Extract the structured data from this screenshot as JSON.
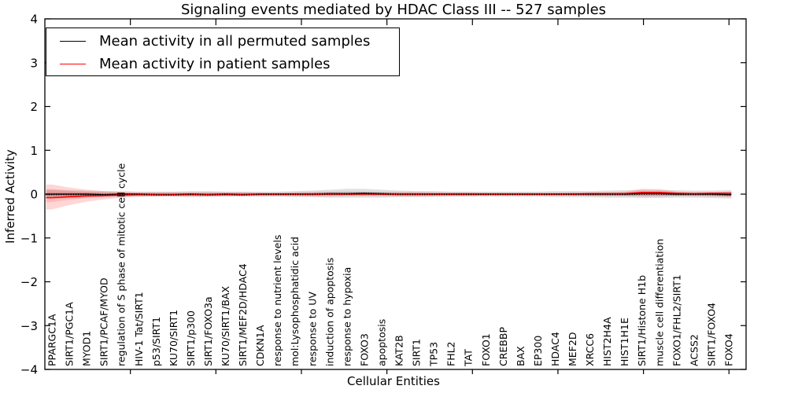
{
  "title": "Signaling events mediated by HDAC Class III -- 527 samples",
  "xlabel": "Cellular Entities",
  "ylabel": "Inferred Activity",
  "legend": {
    "items": [
      {
        "label": "Mean activity in all permuted samples",
        "color": "#000000"
      },
      {
        "label": "Mean activity in patient samples",
        "color": "#ff0000"
      }
    ]
  },
  "chart_data": {
    "type": "line",
    "title": "Signaling events mediated by HDAC Class III -- 527 samples",
    "xlabel": "Cellular Entities",
    "ylabel": "Inferred Activity",
    "ylim": [
      -4,
      4
    ],
    "yticks": [
      -4,
      -3,
      -2,
      -1,
      0,
      1,
      2,
      3,
      4
    ],
    "grid": false,
    "legend_position": "upper left",
    "categories": [
      "PPARGC1A",
      "SIRT1/PGC1A",
      "MYOD1",
      "SIRT1/PCAF/MYOD",
      "regulation of S phase of mitotic cell cycle",
      "HIV-1 Tat/SIRT1",
      "p53/SIRT1",
      "KU70/SIRT1",
      "SIRT1/p300",
      "SIRT1/FOXO3a",
      "KU70/SIRT1/BAX",
      "SIRT1/MEF2D/HDAC4",
      "CDKN1A",
      "response to nutrient levels",
      "mol:Lysophosphatidic acid",
      "response to UV",
      "induction of apoptosis",
      "response to hypoxia",
      "FOXO3",
      "apoptosis",
      "KAT2B",
      "SIRT1",
      "TP53",
      "FHL2",
      "TAT",
      "FOXO1",
      "CREBBP",
      "BAX",
      "EP300",
      "HDAC4",
      "MEF2D",
      "XRCC6",
      "HIST2H4A",
      "HIST1H1E",
      "SIRT1/Histone H1b",
      "muscle cell differentiation",
      "FOXO1/FHL2/SIRT1",
      "ACSS2",
      "SIRT1/FOXO4",
      "FOXO4"
    ],
    "series": [
      {
        "name": "Mean activity in all permuted samples",
        "color": "#000000",
        "style": "solid-with-tick-markers",
        "values": [
          0.0,
          0.0,
          0.0,
          -0.01,
          0.0,
          0.0,
          -0.01,
          -0.01,
          0.0,
          -0.01,
          0.0,
          -0.01,
          0.0,
          0.0,
          0.0,
          0.0,
          0.01,
          0.01,
          0.02,
          0.01,
          0.0,
          0.0,
          0.0,
          0.0,
          0.0,
          0.0,
          0.0,
          0.0,
          0.0,
          0.0,
          0.0,
          0.0,
          0.0,
          0.0,
          0.01,
          0.01,
          0.0,
          0.0,
          0.0,
          -0.01
        ]
      },
      {
        "name": "Mean activity in patient samples",
        "color": "#ff0000",
        "style": "solid",
        "values": [
          -0.08,
          -0.06,
          -0.04,
          -0.03,
          -0.02,
          -0.01,
          -0.01,
          -0.01,
          -0.01,
          -0.01,
          -0.01,
          -0.01,
          0.0,
          0.0,
          0.0,
          0.0,
          0.0,
          0.0,
          0.0,
          0.0,
          0.0,
          0.0,
          0.0,
          0.0,
          0.0,
          0.0,
          0.0,
          0.0,
          0.0,
          0.0,
          0.0,
          0.01,
          0.01,
          0.01,
          0.04,
          0.04,
          0.02,
          0.01,
          0.02,
          0.02
        ]
      }
    ],
    "bands": [
      {
        "name": "permuted-samples-spread",
        "color": "#000000",
        "opacity": 0.12,
        "upper": [
          0.1,
          0.09,
          0.08,
          0.07,
          0.07,
          0.06,
          0.06,
          0.06,
          0.07,
          0.07,
          0.06,
          0.06,
          0.06,
          0.06,
          0.07,
          0.08,
          0.1,
          0.12,
          0.12,
          0.1,
          0.08,
          0.07,
          0.07,
          0.06,
          0.06,
          0.06,
          0.06,
          0.06,
          0.06,
          0.07,
          0.07,
          0.07,
          0.08,
          0.09,
          0.1,
          0.1,
          0.09,
          0.08,
          0.08,
          0.09
        ],
        "lower": [
          -0.1,
          -0.09,
          -0.08,
          -0.07,
          -0.07,
          -0.06,
          -0.06,
          -0.06,
          -0.07,
          -0.07,
          -0.06,
          -0.06,
          -0.06,
          -0.06,
          -0.07,
          -0.07,
          -0.08,
          -0.08,
          -0.08,
          -0.08,
          -0.07,
          -0.07,
          -0.07,
          -0.06,
          -0.06,
          -0.06,
          -0.06,
          -0.06,
          -0.06,
          -0.07,
          -0.07,
          -0.07,
          -0.08,
          -0.08,
          -0.09,
          -0.09,
          -0.08,
          -0.08,
          -0.09,
          -0.1
        ]
      },
      {
        "name": "patient-samples-spread",
        "color": "#ff0000",
        "opacity": 0.16,
        "upper": [
          0.22,
          0.15,
          0.1,
          0.07,
          0.05,
          0.04,
          0.04,
          0.04,
          0.04,
          0.04,
          0.04,
          0.04,
          0.03,
          0.03,
          0.04,
          0.05,
          0.05,
          0.04,
          0.04,
          0.04,
          0.05,
          0.05,
          0.04,
          0.04,
          0.04,
          0.03,
          0.03,
          0.03,
          0.03,
          0.03,
          0.04,
          0.04,
          0.04,
          0.05,
          0.12,
          0.11,
          0.06,
          0.04,
          0.05,
          0.06
        ],
        "lower": [
          -0.35,
          -0.25,
          -0.17,
          -0.12,
          -0.08,
          -0.06,
          -0.05,
          -0.05,
          -0.05,
          -0.05,
          -0.04,
          -0.04,
          -0.04,
          -0.04,
          -0.04,
          -0.05,
          -0.05,
          -0.04,
          -0.04,
          -0.04,
          -0.05,
          -0.05,
          -0.04,
          -0.04,
          -0.04,
          -0.03,
          -0.03,
          -0.03,
          -0.03,
          -0.03,
          -0.03,
          -0.04,
          -0.04,
          -0.04,
          -0.05,
          -0.05,
          -0.04,
          -0.04,
          -0.05,
          -0.07
        ]
      }
    ]
  }
}
